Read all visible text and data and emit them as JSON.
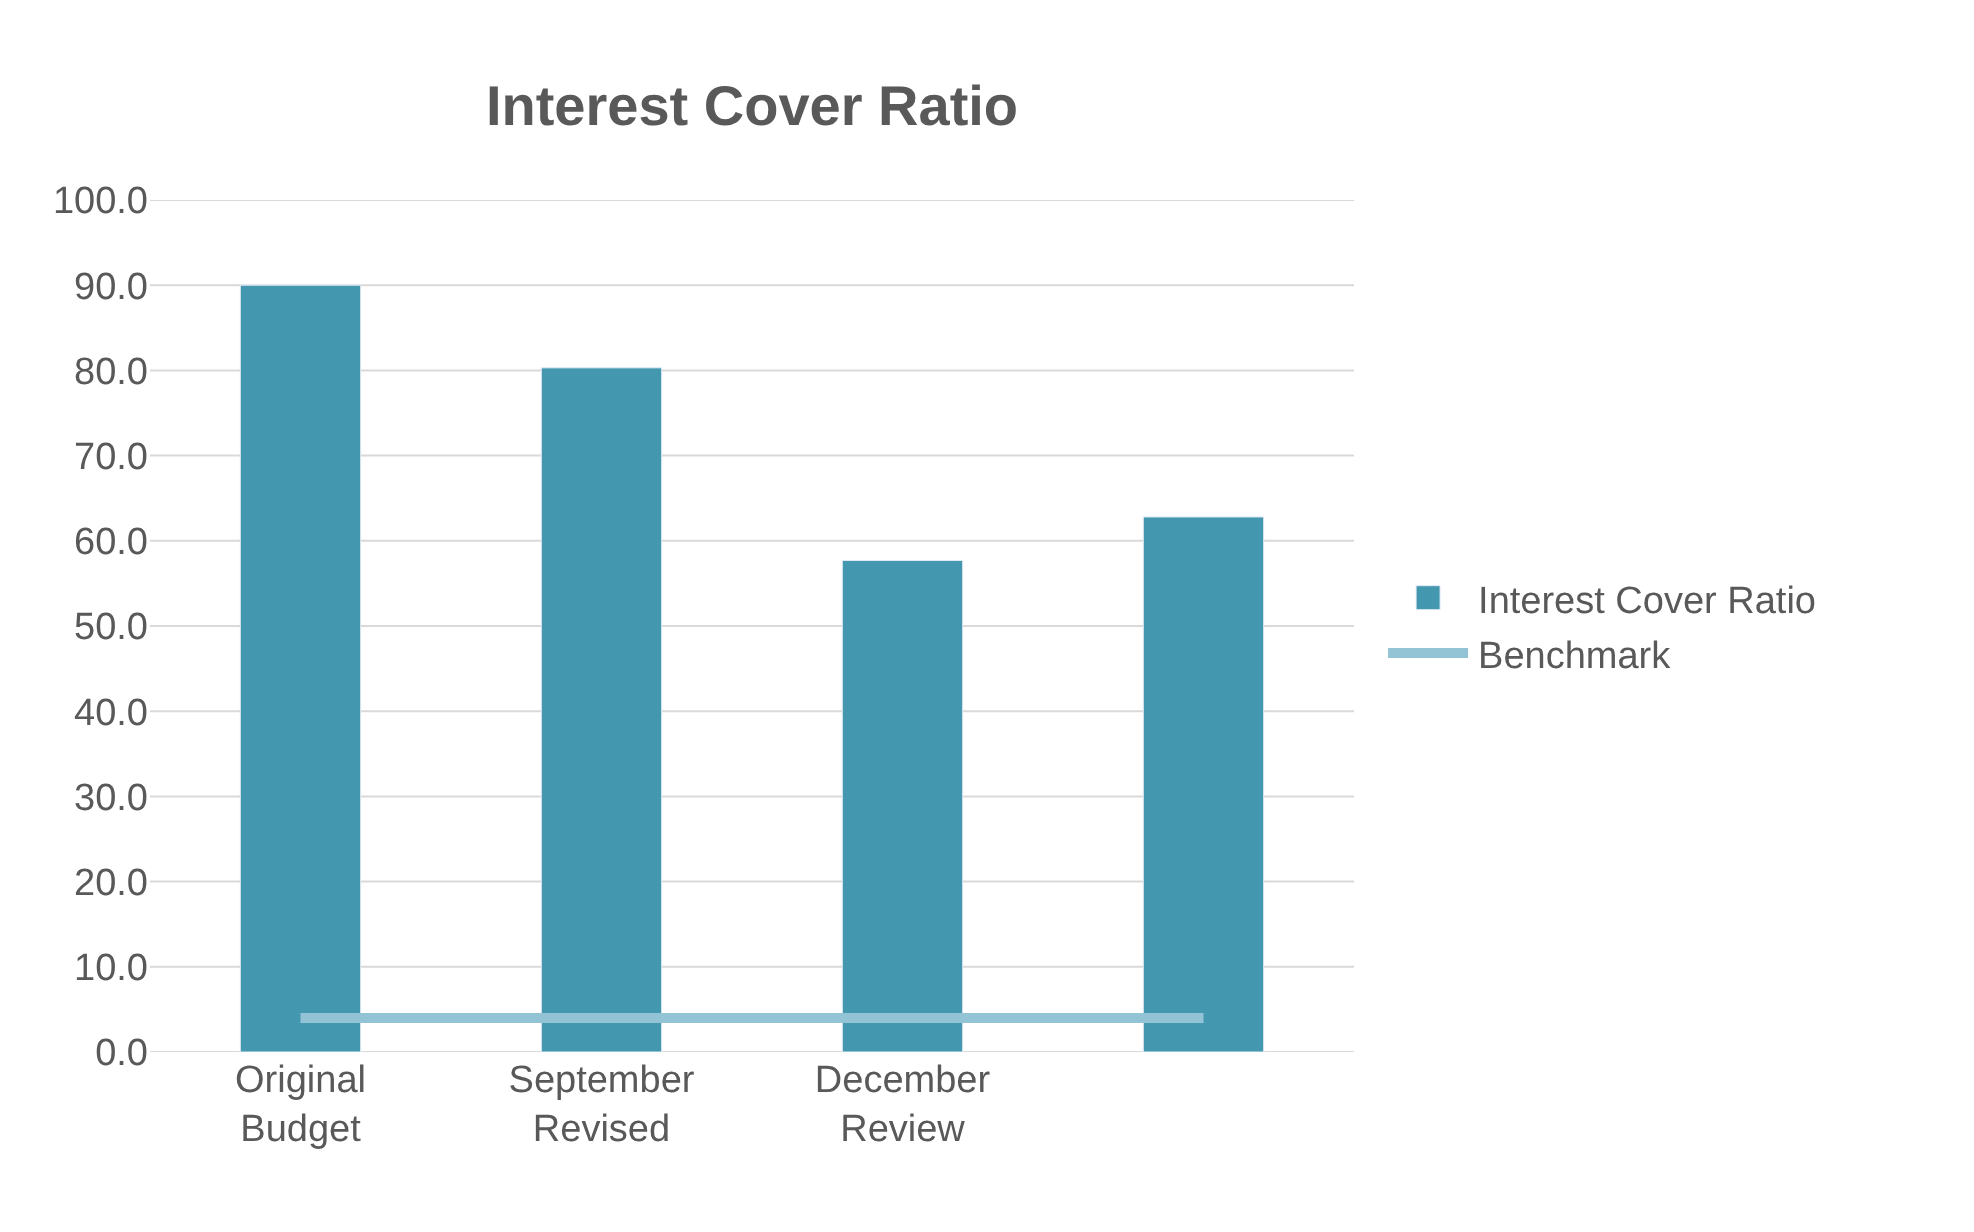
{
  "chart_data": {
    "type": "bar",
    "title": "Interest Cover Ratio",
    "categories": [
      "Original Budget",
      "September Revised",
      "December Review",
      null
    ],
    "series": [
      {
        "name": "Interest Cover Ratio",
        "type": "bar",
        "color": "#4398b0",
        "values": [
          90.0,
          80.3,
          57.7,
          62.8
        ]
      },
      {
        "name": "Benchmark",
        "type": "line",
        "color": "#93c4d6",
        "values": [
          4.0,
          4.0,
          4.0,
          4.0
        ]
      }
    ],
    "ylim": [
      0,
      100
    ],
    "yticks": [
      {
        "value": 0,
        "label": "0.0"
      },
      {
        "value": 10,
        "label": "10.0"
      },
      {
        "value": 20,
        "label": "20.0"
      },
      {
        "value": 30,
        "label": "30.0"
      },
      {
        "value": 40,
        "label": "40.0"
      },
      {
        "value": 50,
        "label": "50.0"
      },
      {
        "value": 60,
        "label": "60.0"
      },
      {
        "value": 70,
        "label": "70.0"
      },
      {
        "value": 80,
        "label": "80.0"
      },
      {
        "value": 90,
        "label": "90.0"
      },
      {
        "value": 100,
        "label": "100.0"
      }
    ],
    "grid": "y",
    "legend": "right",
    "marker": "none",
    "line_style": "solid"
  }
}
